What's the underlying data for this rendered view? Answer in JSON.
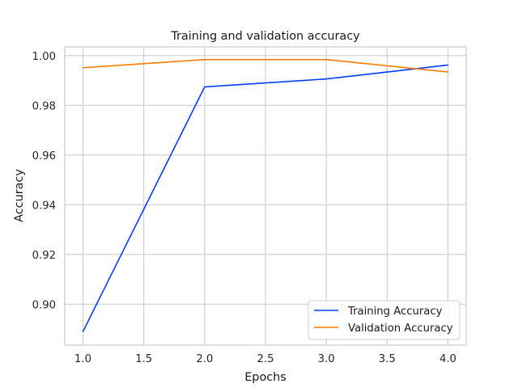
{
  "chart_data": {
    "type": "line",
    "title": "Training and validation accuracy",
    "xlabel": "Epochs",
    "ylabel": "Accuracy",
    "x": [
      1,
      2,
      3,
      4
    ],
    "xlim": [
      0.85,
      4.15
    ],
    "ylim": [
      0.8835,
      1.0035
    ],
    "xticks": [
      1.0,
      1.5,
      2.0,
      2.5,
      3.0,
      3.5,
      4.0
    ],
    "xtick_labels": [
      "1.0",
      "1.5",
      "2.0",
      "2.5",
      "3.0",
      "3.5",
      "4.0"
    ],
    "yticks": [
      0.9,
      0.92,
      0.94,
      0.96,
      0.98,
      1.0
    ],
    "ytick_labels": [
      "0.90",
      "0.92",
      "0.94",
      "0.96",
      "0.98",
      "1.00"
    ],
    "grid": true,
    "legend_position": "lower-right",
    "series": [
      {
        "name": "Training Accuracy",
        "color": "#023eff",
        "values": [
          0.889,
          0.9874,
          0.9906,
          0.9962
        ]
      },
      {
        "name": "Validation Accuracy",
        "color": "#ff7c00",
        "values": [
          0.9951,
          0.9984,
          0.9984,
          0.9934
        ]
      }
    ]
  }
}
